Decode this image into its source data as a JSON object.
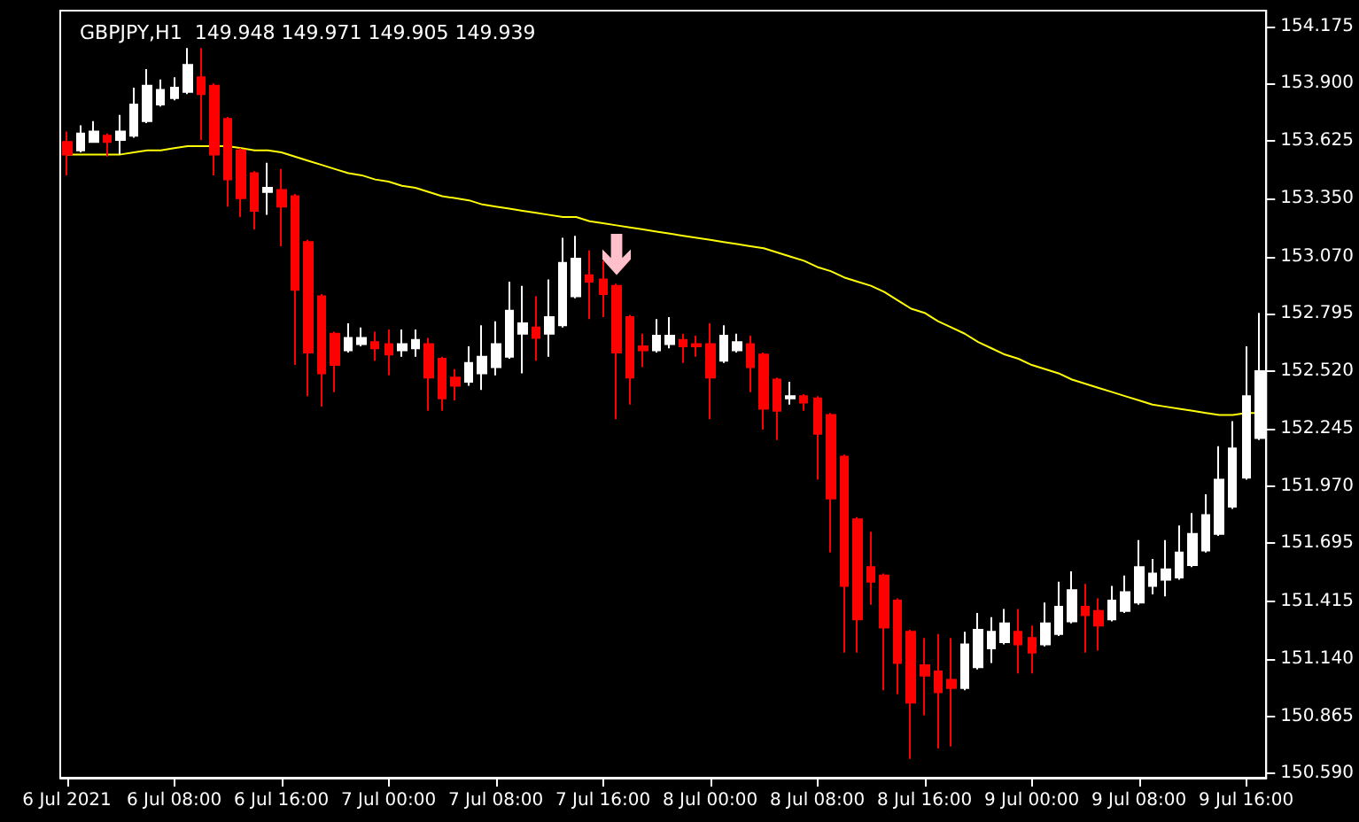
{
  "chart_data": {
    "type": "candlestick",
    "title": "GBPJPY,H1  149.948 149.971 149.905 149.939",
    "categories": [
      "6 Jul 2021",
      null,
      null,
      null,
      null,
      null,
      null,
      null,
      "6 Jul 08:00",
      null,
      null,
      null,
      null,
      null,
      null,
      null,
      "6 Jul 16:00",
      null,
      null,
      null,
      null,
      null,
      null,
      null,
      "7 Jul 00:00",
      null,
      null,
      null,
      null,
      null,
      null,
      null,
      "7 Jul 08:00",
      null,
      null,
      null,
      null,
      null,
      null,
      null,
      "7 Jul 16:00",
      null,
      null,
      null,
      null,
      null,
      null,
      null,
      "8 Jul 00:00",
      null,
      null,
      null,
      null,
      null,
      null,
      null,
      "8 Jul 08:00",
      null,
      null,
      null,
      null,
      null,
      null,
      null,
      "8 Jul 16:00",
      null,
      null,
      null,
      null,
      null,
      null,
      null,
      "9 Jul 00:00",
      null,
      null,
      null,
      null,
      null,
      null,
      null,
      "9 Jul 08:00",
      null,
      null,
      null,
      null,
      null,
      null,
      null,
      "9 Jul 16:00",
      null
    ],
    "ohlc": [
      [
        153.62,
        153.67,
        153.46,
        153.56
      ],
      [
        153.58,
        153.7,
        153.57,
        153.66
      ],
      [
        153.62,
        153.72,
        153.62,
        153.67
      ],
      [
        153.65,
        153.66,
        153.55,
        153.62
      ],
      [
        153.63,
        153.75,
        153.56,
        153.67
      ],
      [
        153.65,
        153.88,
        153.64,
        153.8
      ],
      [
        153.72,
        153.97,
        153.71,
        153.89
      ],
      [
        153.8,
        153.92,
        153.79,
        153.87
      ],
      [
        153.83,
        153.93,
        153.82,
        153.88
      ],
      [
        153.86,
        154.07,
        153.85,
        153.99
      ],
      [
        153.93,
        154.07,
        153.63,
        153.85
      ],
      [
        153.89,
        153.9,
        153.46,
        153.56
      ],
      [
        153.73,
        153.74,
        153.31,
        153.44
      ],
      [
        153.58,
        153.59,
        153.26,
        153.35
      ],
      [
        153.47,
        153.48,
        153.2,
        153.29
      ],
      [
        153.38,
        153.52,
        153.27,
        153.4
      ],
      [
        153.39,
        153.49,
        153.12,
        153.31
      ],
      [
        153.36,
        153.37,
        152.55,
        152.91
      ],
      [
        153.14,
        153.15,
        152.4,
        152.61
      ],
      [
        152.88,
        152.89,
        152.35,
        152.51
      ],
      [
        152.7,
        152.71,
        152.42,
        152.55
      ],
      [
        152.62,
        152.75,
        152.61,
        152.68
      ],
      [
        152.65,
        152.73,
        152.64,
        152.68
      ],
      [
        152.66,
        152.71,
        152.57,
        152.63
      ],
      [
        152.65,
        152.72,
        152.5,
        152.6
      ],
      [
        152.62,
        152.72,
        152.59,
        152.65
      ],
      [
        152.63,
        152.72,
        152.59,
        152.67
      ],
      [
        152.65,
        152.68,
        152.33,
        152.49
      ],
      [
        152.58,
        152.59,
        152.33,
        152.39
      ],
      [
        152.49,
        152.53,
        152.38,
        152.45
      ],
      [
        152.47,
        152.64,
        152.45,
        152.56
      ],
      [
        152.51,
        152.74,
        152.43,
        152.59
      ],
      [
        152.54,
        152.76,
        152.5,
        152.65
      ],
      [
        152.59,
        152.95,
        152.58,
        152.81
      ],
      [
        152.7,
        152.93,
        152.51,
        152.75
      ],
      [
        152.73,
        152.88,
        152.57,
        152.68
      ],
      [
        152.7,
        152.96,
        152.59,
        152.78
      ],
      [
        152.74,
        153.16,
        152.73,
        153.04
      ],
      [
        152.88,
        153.17,
        152.87,
        153.06
      ],
      [
        152.98,
        153.1,
        152.77,
        152.95
      ],
      [
        152.96,
        153.05,
        152.78,
        152.89
      ],
      [
        152.93,
        152.94,
        152.29,
        152.61
      ],
      [
        152.78,
        152.79,
        152.36,
        152.49
      ],
      [
        152.64,
        152.7,
        152.54,
        152.62
      ],
      [
        152.62,
        152.77,
        152.61,
        152.69
      ],
      [
        152.65,
        152.78,
        152.63,
        152.69
      ],
      [
        152.67,
        152.7,
        152.56,
        152.64
      ],
      [
        152.65,
        152.69,
        152.59,
        152.64
      ],
      [
        152.65,
        152.75,
        152.29,
        152.49
      ],
      [
        152.57,
        152.74,
        152.56,
        152.69
      ],
      [
        152.62,
        152.7,
        152.61,
        152.66
      ],
      [
        152.65,
        152.69,
        152.42,
        152.54
      ],
      [
        152.6,
        152.61,
        152.24,
        152.34
      ],
      [
        152.48,
        152.49,
        152.19,
        152.33
      ],
      [
        152.39,
        152.47,
        152.36,
        152.4
      ],
      [
        152.4,
        152.41,
        152.33,
        152.37
      ],
      [
        152.39,
        152.4,
        152.0,
        152.22
      ],
      [
        152.31,
        152.32,
        151.65,
        151.91
      ],
      [
        152.11,
        152.12,
        151.17,
        151.49
      ],
      [
        151.81,
        151.82,
        151.17,
        151.33
      ],
      [
        151.58,
        151.75,
        151.4,
        151.51
      ],
      [
        151.54,
        151.55,
        150.99,
        151.29
      ],
      [
        151.42,
        151.43,
        150.97,
        151.12
      ],
      [
        151.27,
        151.28,
        150.66,
        150.93
      ],
      [
        151.11,
        151.24,
        150.87,
        151.06
      ],
      [
        151.08,
        151.26,
        150.71,
        150.98
      ],
      [
        151.04,
        151.24,
        150.72,
        151.0
      ],
      [
        151.0,
        151.27,
        150.99,
        151.21
      ],
      [
        151.1,
        151.36,
        151.09,
        151.28
      ],
      [
        151.19,
        151.34,
        151.12,
        151.27
      ],
      [
        151.22,
        151.38,
        151.21,
        151.31
      ],
      [
        151.27,
        151.38,
        151.07,
        151.21
      ],
      [
        151.24,
        151.3,
        151.07,
        151.17
      ],
      [
        151.21,
        151.41,
        151.2,
        151.31
      ],
      [
        151.26,
        151.51,
        151.25,
        151.39
      ],
      [
        151.32,
        151.56,
        151.31,
        151.47
      ],
      [
        151.39,
        151.5,
        151.17,
        151.35
      ],
      [
        151.37,
        151.43,
        151.18,
        151.3
      ],
      [
        151.33,
        151.49,
        151.32,
        151.42
      ],
      [
        151.37,
        151.54,
        151.36,
        151.46
      ],
      [
        151.41,
        151.71,
        151.4,
        151.58
      ],
      [
        151.49,
        151.62,
        151.45,
        151.55
      ],
      [
        151.52,
        151.71,
        151.44,
        151.57
      ],
      [
        151.53,
        151.78,
        151.52,
        151.65
      ],
      [
        151.59,
        151.84,
        151.58,
        151.74
      ],
      [
        151.66,
        151.93,
        151.65,
        151.83
      ],
      [
        151.74,
        152.16,
        151.73,
        152.0
      ],
      [
        151.87,
        152.28,
        151.86,
        152.15
      ],
      [
        152.01,
        152.64,
        152.0,
        152.4
      ],
      [
        152.2,
        152.8,
        152.19,
        152.52
      ]
    ],
    "colors": [
      "#ff0000",
      "#ffffff",
      "#ffffff",
      "#ff0000",
      "#ffffff",
      "#ffffff",
      "#ffffff",
      "#ffffff",
      "#ffffff",
      "#ffffff",
      "#ff0000",
      "#ff0000",
      "#ff0000",
      "#ff0000",
      "#ff0000",
      "#ffffff",
      "#ff0000",
      "#ff0000",
      "#ff0000",
      "#ff0000",
      "#ff0000",
      "#ffffff",
      "#ffffff",
      "#ff0000",
      "#ff0000",
      "#ffffff",
      "#ffffff",
      "#ff0000",
      "#ff0000",
      "#ff0000",
      "#ffffff",
      "#ffffff",
      "#ffffff",
      "#ffffff",
      "#ffffff",
      "#ff0000",
      "#ffffff",
      "#ffffff",
      "#ffffff",
      "#ff0000",
      "#ff0000",
      "#ff0000",
      "#ff0000",
      "#ff0000",
      "#ffffff",
      "#ffffff",
      "#ff0000",
      "#ff0000",
      "#ff0000",
      "#ffffff",
      "#ffffff",
      "#ff0000",
      "#ff0000",
      "#ff0000",
      "#ffffff",
      "#ff0000",
      "#ff0000",
      "#ff0000",
      "#ff0000",
      "#ff0000",
      "#ff0000",
      "#ff0000",
      "#ff0000",
      "#ff0000",
      "#ff0000",
      "#ff0000",
      "#ff0000",
      "#ffffff",
      "#ffffff",
      "#ffffff",
      "#ffffff",
      "#ff0000",
      "#ff0000",
      "#ffffff",
      "#ffffff",
      "#ffffff",
      "#ff0000",
      "#ff0000",
      "#ffffff",
      "#ffffff",
      "#ffffff",
      "#ffffff",
      "#ffffff",
      "#ffffff",
      "#ffffff",
      "#ffffff",
      "#ffffff",
      "#ffffff",
      "#ffffff",
      "#ffffff"
    ],
    "series": [
      {
        "type": "line",
        "color": "#ffff00",
        "values": [
          153.56,
          153.56,
          153.56,
          153.56,
          153.56,
          153.57,
          153.58,
          153.58,
          153.59,
          153.6,
          153.6,
          153.6,
          153.6,
          153.59,
          153.58,
          153.58,
          153.57,
          153.55,
          153.53,
          153.51,
          153.49,
          153.47,
          153.46,
          153.44,
          153.43,
          153.41,
          153.4,
          153.38,
          153.36,
          153.35,
          153.34,
          153.32,
          153.31,
          153.3,
          153.29,
          153.28,
          153.27,
          153.26,
          153.26,
          153.24,
          153.23,
          153.22,
          153.21,
          153.2,
          153.19,
          153.18,
          153.17,
          153.16,
          153.15,
          153.14,
          153.13,
          153.12,
          153.11,
          153.09,
          153.07,
          153.05,
          153.02,
          153.0,
          152.97,
          152.95,
          152.93,
          152.9,
          152.86,
          152.82,
          152.8,
          152.76,
          152.73,
          152.7,
          152.66,
          152.63,
          152.6,
          152.58,
          152.55,
          152.53,
          152.51,
          152.48,
          152.46,
          152.44,
          152.42,
          152.4,
          152.38,
          152.36,
          152.35,
          152.34,
          152.33,
          152.32,
          152.31,
          152.31,
          152.32,
          152.32
        ]
      }
    ],
    "marker": "none",
    "ylim": [
      150.57,
      154.25
    ],
    "yticks": [
      154.175,
      {
        "value": 153.9,
        "label": "153.900"
      },
      153.625,
      {
        "value": 153.35,
        "label": "153.350"
      },
      {
        "value": 153.07,
        "label": "153.070"
      },
      152.795,
      {
        "value": 152.52,
        "label": "152.520"
      },
      152.245,
      {
        "value": 151.97,
        "label": "151.970"
      },
      151.695,
      151.415,
      {
        "value": 151.14,
        "label": "151.140"
      },
      150.865,
      {
        "value": 150.59,
        "label": "150.590"
      }
    ]
  }
}
